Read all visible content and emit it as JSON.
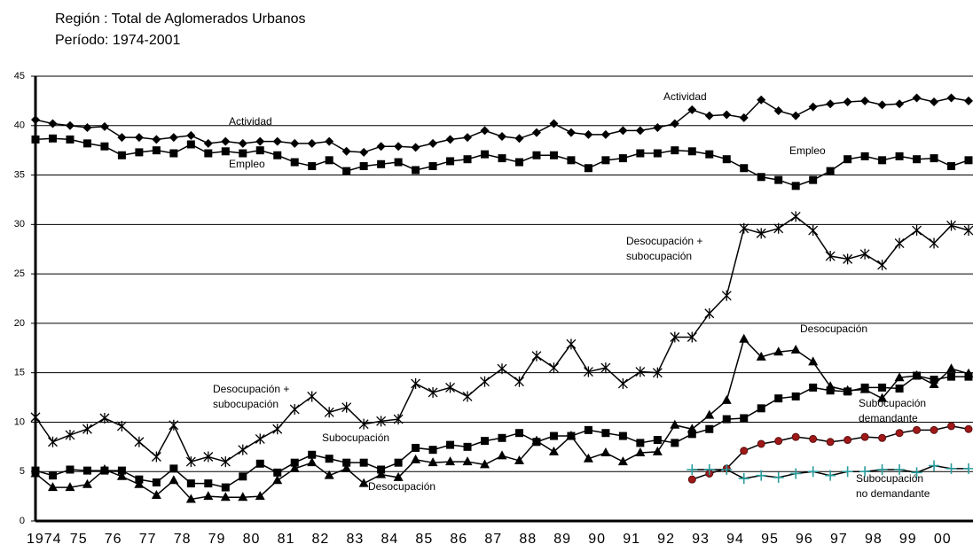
{
  "chart_data": {
    "type": "line",
    "title": "Región : Total  de Aglomerados Urbanos",
    "subtitle": "Período: 1974-2001",
    "categories": [
      null,
      "1974",
      null,
      "75",
      null,
      "76",
      null,
      "77",
      null,
      "78",
      null,
      "79",
      null,
      "80",
      null,
      "81",
      null,
      "82",
      null,
      "83",
      null,
      "84",
      null,
      "85",
      null,
      "86",
      null,
      "87",
      null,
      "88",
      null,
      "89",
      null,
      "90",
      null,
      "91",
      null,
      "92",
      null,
      "93",
      null,
      "94",
      null,
      "95",
      null,
      "96",
      null,
      "97",
      null,
      "98",
      null,
      "99",
      null,
      "00",
      null
    ],
    "ylim": [
      0,
      45
    ],
    "yticks": [
      0,
      5,
      10,
      15,
      20,
      25,
      30,
      35,
      40,
      45
    ],
    "grid": true,
    "series": [
      {
        "name": "Actividad",
        "color": "#000000",
        "marker": "diamond",
        "values": [
          40.6,
          40.2,
          40.0,
          39.8,
          39.9,
          38.8,
          38.8,
          38.6,
          38.8,
          39.0,
          38.2,
          38.4,
          38.2,
          38.4,
          38.4,
          38.2,
          38.2,
          38.4,
          37.4,
          37.3,
          37.9,
          37.9,
          37.8,
          38.2,
          38.6,
          38.8,
          39.5,
          38.9,
          38.7,
          39.3,
          40.2,
          39.3,
          39.1,
          39.1,
          39.5,
          39.5,
          39.8,
          40.2,
          41.6,
          41.0,
          41.1,
          40.8,
          42.6,
          41.5,
          41.0,
          41.9,
          42.2,
          42.4,
          42.5,
          42.1,
          42.2,
          42.8,
          42.4,
          42.8,
          42.5
        ]
      },
      {
        "name": "Empleo",
        "color": "#000000",
        "marker": "square",
        "values": [
          38.6,
          38.7,
          38.6,
          38.2,
          37.9,
          37.0,
          37.3,
          37.5,
          37.2,
          38.1,
          37.2,
          37.4,
          37.2,
          37.5,
          37.0,
          36.3,
          35.9,
          36.5,
          35.4,
          35.9,
          36.1,
          36.3,
          35.5,
          35.9,
          36.4,
          36.6,
          37.1,
          36.7,
          36.3,
          37.0,
          37.0,
          36.5,
          35.7,
          36.5,
          36.7,
          37.2,
          37.2,
          37.5,
          37.4,
          37.1,
          36.6,
          35.7,
          34.8,
          34.5,
          33.9,
          34.5,
          35.4,
          36.6,
          36.9,
          36.5,
          36.9,
          36.6,
          36.7,
          35.9,
          36.5
        ]
      },
      {
        "name": "Desocupación + subocupación",
        "color": "#000000",
        "marker": "asterisk",
        "values": [
          10.5,
          8.0,
          8.7,
          9.3,
          10.4,
          9.6,
          8.0,
          6.5,
          9.7,
          6.0,
          6.5,
          6.0,
          7.2,
          8.3,
          9.3,
          11.3,
          12.6,
          11.0,
          11.5,
          9.8,
          10.1,
          10.3,
          13.9,
          13.0,
          13.5,
          12.6,
          14.1,
          15.4,
          14.1,
          16.7,
          15.5,
          17.9,
          15.1,
          15.5,
          13.9,
          15.1,
          15.0,
          18.6,
          18.6,
          21.0,
          22.8,
          29.6,
          29.1,
          29.6,
          30.8,
          29.4,
          26.8,
          26.5,
          27.0,
          25.9,
          28.1,
          29.4,
          28.1,
          29.9,
          29.4
        ]
      },
      {
        "name": "Desocupación",
        "color": "#000000",
        "marker": "triangle",
        "values": [
          4.8,
          3.4,
          3.4,
          3.7,
          5.2,
          4.5,
          3.7,
          2.6,
          4.1,
          2.2,
          2.5,
          2.4,
          2.4,
          2.5,
          4.1,
          5.3,
          5.9,
          4.6,
          5.3,
          3.8,
          4.7,
          4.4,
          6.2,
          5.9,
          6.0,
          6.0,
          5.7,
          6.6,
          6.1,
          8.1,
          7.0,
          8.6,
          6.3,
          6.9,
          6.0,
          6.9,
          7.0,
          9.7,
          9.3,
          10.7,
          12.2,
          18.4,
          16.6,
          17.1,
          17.3,
          16.1,
          13.6,
          13.2,
          13.3,
          12.4,
          14.5,
          14.7,
          13.8,
          15.4,
          14.9
        ]
      },
      {
        "name": "Subocupación",
        "color": "#000000",
        "marker": "square",
        "values": [
          5.1,
          4.6,
          5.2,
          5.1,
          5.1,
          5.1,
          4.2,
          3.9,
          5.3,
          3.8,
          3.8,
          3.4,
          4.5,
          5.8,
          4.9,
          5.9,
          6.7,
          6.3,
          5.9,
          5.9,
          5.2,
          5.9,
          7.4,
          7.2,
          7.7,
          7.5,
          8.1,
          8.4,
          8.9,
          8.0,
          8.6,
          8.6,
          9.2,
          8.9,
          8.6,
          7.9,
          8.2,
          7.9,
          8.8,
          9.3,
          10.3,
          10.4,
          11.4,
          12.4,
          12.6,
          13.5,
          13.2,
          13.1,
          13.5,
          13.5,
          13.4,
          14.7,
          14.3,
          14.6,
          14.6
        ]
      },
      {
        "name": "Subocupación demandante",
        "color": "#a01818",
        "marker": "circle",
        "values": [
          null,
          null,
          null,
          null,
          null,
          null,
          null,
          null,
          null,
          null,
          null,
          null,
          null,
          null,
          null,
          null,
          null,
          null,
          null,
          null,
          null,
          null,
          null,
          null,
          null,
          null,
          null,
          null,
          null,
          null,
          null,
          null,
          null,
          null,
          null,
          null,
          null,
          null,
          4.2,
          4.8,
          5.3,
          7.1,
          7.8,
          8.1,
          8.5,
          8.3,
          8.0,
          8.2,
          8.5,
          8.4,
          8.9,
          9.2,
          9.2,
          9.6,
          9.3
        ]
      },
      {
        "name": "Subocupación no demandante",
        "color": "#2a9d9d",
        "marker": "plus",
        "values": [
          null,
          null,
          null,
          null,
          null,
          null,
          null,
          null,
          null,
          null,
          null,
          null,
          null,
          null,
          null,
          null,
          null,
          null,
          null,
          null,
          null,
          null,
          null,
          null,
          null,
          null,
          null,
          null,
          null,
          null,
          null,
          null,
          null,
          null,
          null,
          null,
          null,
          null,
          5.2,
          5.2,
          5.2,
          4.3,
          4.6,
          4.4,
          4.8,
          5.0,
          4.6,
          5.0,
          5.0,
          5.2,
          5.2,
          4.9,
          5.6,
          5.3,
          5.3
        ]
      }
    ],
    "annotations": [
      [
        "Actividad"
      ],
      [
        "Actividad"
      ],
      [
        "Empleo"
      ],
      [
        "Empleo"
      ],
      [
        "Desocupación +",
        "subocupación"
      ],
      [
        "Desocupación +",
        "subocupación"
      ],
      [
        "Subocupación"
      ],
      [
        "Desocupación"
      ],
      [
        "Desocupación"
      ],
      [
        "Subocupación",
        "demandante"
      ],
      [
        "Subocupación",
        "no demandante"
      ]
    ]
  }
}
